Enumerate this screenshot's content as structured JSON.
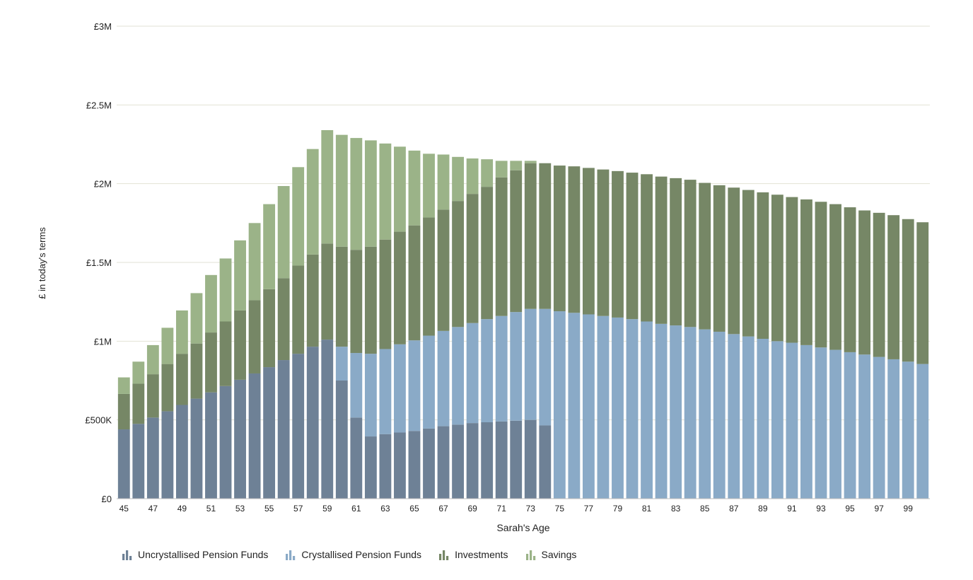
{
  "chart_data": {
    "type": "bar",
    "stacked": true,
    "title": "",
    "xlabel": "Sarah's Age",
    "ylabel": "£ in today's terms",
    "ylim": [
      0,
      3000000
    ],
    "yticks": [
      {
        "value": 0,
        "label": "£0"
      },
      {
        "value": 500000,
        "label": "£500K"
      },
      {
        "value": 1000000,
        "label": "£1M"
      },
      {
        "value": 1500000,
        "label": "£1.5M"
      },
      {
        "value": 2000000,
        "label": "£2M"
      },
      {
        "value": 2500000,
        "label": "£2.5M"
      },
      {
        "value": 3000000,
        "label": "£3M"
      }
    ],
    "x_tick_labels": [
      "45",
      "47",
      "49",
      "51",
      "53",
      "55",
      "57",
      "59",
      "61",
      "63",
      "65",
      "67",
      "69",
      "71",
      "73",
      "75",
      "77",
      "79",
      "81",
      "83",
      "85",
      "87",
      "89",
      "91",
      "93",
      "95",
      "97",
      "99"
    ],
    "categories": [
      45,
      46,
      47,
      48,
      49,
      50,
      51,
      52,
      53,
      54,
      55,
      56,
      57,
      58,
      59,
      60,
      61,
      62,
      63,
      64,
      65,
      66,
      67,
      68,
      69,
      70,
      71,
      72,
      73,
      74,
      75,
      76,
      77,
      78,
      79,
      80,
      81,
      82,
      83,
      84,
      85,
      86,
      87,
      88,
      89,
      90,
      91,
      92,
      93,
      94,
      95,
      96,
      97,
      98,
      99,
      100
    ],
    "legend_position": "bottom-left",
    "series": [
      {
        "name": "Uncrystallised Pension Funds",
        "color": "#6e8196",
        "values": [
          440000,
          475000,
          515000,
          555000,
          595000,
          635000,
          675000,
          715000,
          755000,
          795000,
          835000,
          880000,
          920000,
          965000,
          1010000,
          750000,
          515000,
          395000,
          410000,
          420000,
          430000,
          445000,
          460000,
          470000,
          480000,
          485000,
          490000,
          495000,
          500000,
          465000,
          0,
          0,
          0,
          0,
          0,
          0,
          0,
          0,
          0,
          0,
          0,
          0,
          0,
          0,
          0,
          0,
          0,
          0,
          0,
          0,
          0,
          0,
          0,
          0,
          0,
          0
        ]
      },
      {
        "name": "Crystallised Pension Funds",
        "color": "#8aaac7",
        "values": [
          0,
          0,
          0,
          0,
          0,
          0,
          0,
          0,
          0,
          0,
          0,
          0,
          0,
          0,
          0,
          215000,
          410000,
          525000,
          540000,
          560000,
          575000,
          590000,
          605000,
          620000,
          635000,
          655000,
          670000,
          690000,
          705000,
          740000,
          1190000,
          1180000,
          1170000,
          1160000,
          1150000,
          1140000,
          1125000,
          1110000,
          1100000,
          1090000,
          1075000,
          1060000,
          1045000,
          1030000,
          1015000,
          1000000,
          990000,
          975000,
          960000,
          945000,
          930000,
          915000,
          900000,
          885000,
          870000,
          855000
        ]
      },
      {
        "name": "Investments",
        "color": "#768766",
        "values": [
          225000,
          255000,
          275000,
          300000,
          325000,
          350000,
          380000,
          410000,
          440000,
          465000,
          495000,
          520000,
          560000,
          585000,
          610000,
          635000,
          655000,
          680000,
          695000,
          715000,
          730000,
          750000,
          770000,
          800000,
          820000,
          840000,
          880000,
          900000,
          925000,
          925000,
          925000,
          930000,
          930000,
          930000,
          930000,
          930000,
          935000,
          935000,
          935000,
          935000,
          930000,
          930000,
          930000,
          930000,
          930000,
          930000,
          925000,
          925000,
          925000,
          925000,
          920000,
          915000,
          915000,
          915000,
          905000,
          900000
        ]
      },
      {
        "name": "Savings",
        "color": "#9bb388",
        "values": [
          105000,
          140000,
          185000,
          230000,
          275000,
          320000,
          365000,
          400000,
          445000,
          490000,
          540000,
          585000,
          625000,
          670000,
          720000,
          710000,
          710000,
          675000,
          610000,
          540000,
          475000,
          405000,
          350000,
          280000,
          225000,
          175000,
          105000,
          60000,
          15000,
          0,
          0,
          0,
          0,
          0,
          0,
          0,
          0,
          0,
          0,
          0,
          0,
          0,
          0,
          0,
          0,
          0,
          0,
          0,
          0,
          0,
          0,
          0,
          0,
          0,
          0,
          0
        ]
      }
    ]
  }
}
